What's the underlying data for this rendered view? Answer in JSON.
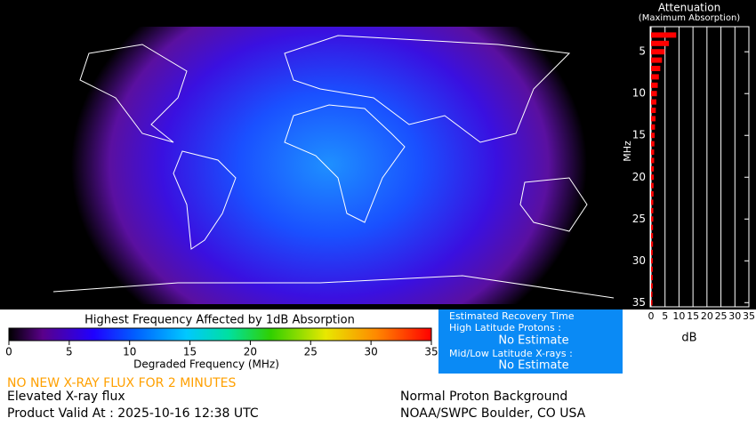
{
  "colorbar": {
    "title": "Highest Frequency Affected by 1dB Absorption",
    "xlabel": "Degraded Frequency (MHz)",
    "xlim": [
      0,
      35
    ],
    "xticks": [
      0,
      5,
      10,
      15,
      20,
      25,
      30,
      35
    ]
  },
  "chart_data": {
    "type": "bar",
    "orientation": "horizontal",
    "title": "Attenuation",
    "subtitle": "(Maximum Absorption)",
    "ylabel": "MHz",
    "xlabel": "dB",
    "y": [
      3,
      4,
      5,
      6,
      7,
      8,
      9,
      10,
      11,
      12,
      13,
      14,
      15,
      16,
      17,
      18,
      19,
      20,
      21,
      22,
      23,
      24,
      25,
      26,
      27,
      28,
      29,
      30,
      31,
      32,
      33,
      34,
      35
    ],
    "values": [
      9.0,
      6.4,
      4.9,
      3.9,
      3.3,
      2.8,
      2.4,
      2.1,
      1.9,
      1.7,
      1.6,
      1.4,
      1.3,
      1.2,
      1.1,
      1.1,
      1.0,
      1.0,
      0.9,
      0.9,
      0.8,
      0.8,
      0.8,
      0.7,
      0.7,
      0.7,
      0.6,
      0.6,
      0.6,
      0.6,
      0.6,
      0.5,
      0.5
    ],
    "color": "#ff0000",
    "xlim": [
      0,
      35
    ],
    "xticks": [
      0,
      5,
      10,
      15,
      20,
      25,
      30,
      35
    ],
    "ylim": [
      2,
      35.5
    ],
    "yticks": [
      5,
      10,
      15,
      20,
      25,
      30,
      35
    ],
    "grid": true
  },
  "recovery": {
    "title": "Estimated Recovery Time",
    "high_label": "High Latitude Protons :",
    "high_value": "No Estimate",
    "mid_label": "Mid/Low Latitude X-rays :",
    "mid_value": "No Estimate"
  },
  "status": {
    "alert": "NO NEW X-RAY FLUX FOR 2 MINUTES",
    "xray": "Elevated X-ray flux",
    "valid": "Product Valid At : 2025-10-16 12:38 UTC",
    "proton": "Normal Proton Background",
    "credit": "NOAA/SWPC Boulder, CO USA"
  }
}
